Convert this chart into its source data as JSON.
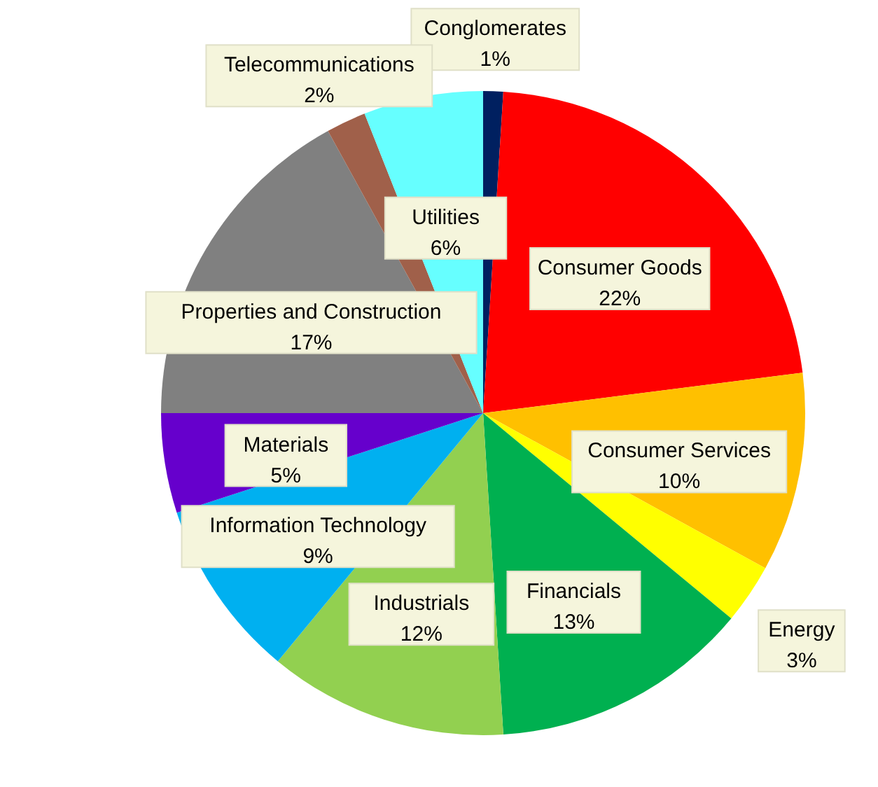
{
  "chart_data": {
    "type": "pie",
    "categories": [
      "Conglomerates",
      "Consumer Goods",
      "Consumer Services",
      "Energy",
      "Financials",
      "Industrials",
      "Information Technology",
      "Materials",
      "Properties and Construction",
      "Telecommunications",
      "Utilities"
    ],
    "values": [
      1,
      22,
      10,
      3,
      13,
      12,
      9,
      5,
      17,
      2,
      6
    ],
    "colors": [
      "#002060",
      "#ff0000",
      "#ffc000",
      "#ffff00",
      "#00b050",
      "#92d050",
      "#00b0f0",
      "#6600cc",
      "#808080",
      "#a0604a",
      "#66ffff"
    ],
    "value_labels": [
      "1%",
      "22%",
      "10%",
      "3%",
      "13%",
      "12%",
      "9%",
      "5%",
      "17%",
      "2%",
      "6%"
    ]
  }
}
